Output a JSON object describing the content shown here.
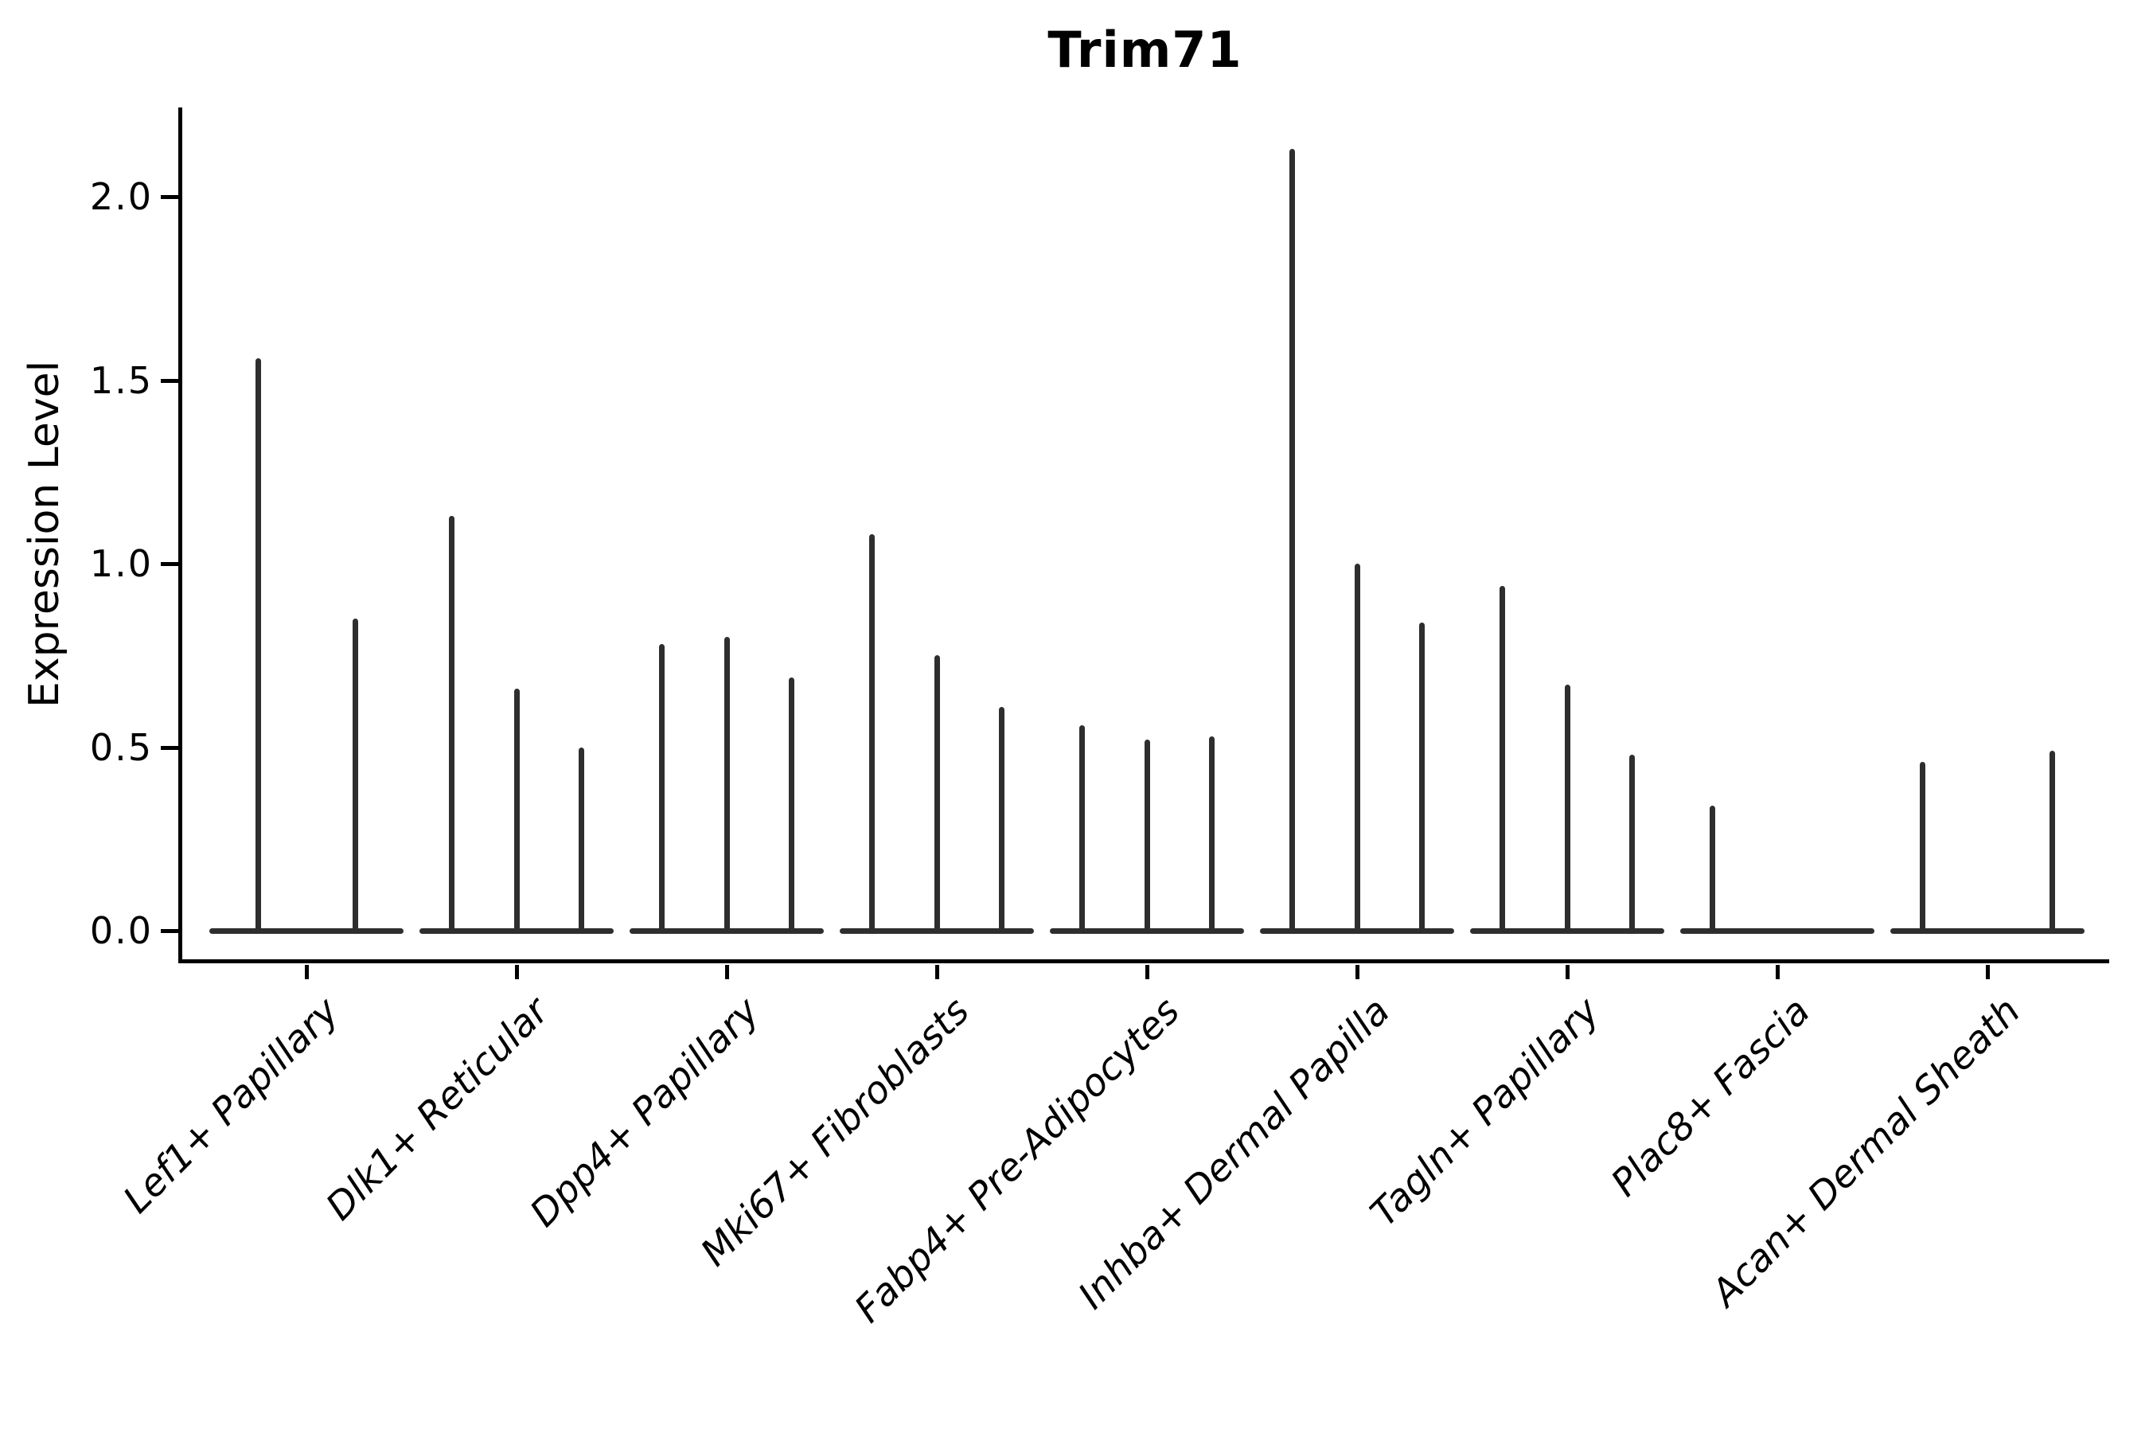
{
  "chart_data": {
    "type": "violin",
    "title": "Trim71",
    "ylabel": "Expression Level",
    "xlabel": "",
    "grid": false,
    "legend": "none",
    "ylim": [
      -0.08,
      2.24
    ],
    "yticks": [
      0.0,
      0.5,
      1.0,
      1.5,
      2.0
    ],
    "ytick_labels": [
      "0.0",
      "0.5",
      "1.0",
      "1.5",
      "2.0"
    ],
    "categories": [
      "Lef1+ Papillary",
      "Dlk1+ Reticular",
      "Dpp4+ Papillary",
      "Mki67+ Fibroblasts",
      "Fabp4+ Pre-Adipocytes",
      "Inhba+ Dermal Papilla",
      "Tagln+ Papillary",
      "Plac8+ Fascia",
      "Acan+ Dermal Sheath"
    ],
    "violins": [
      [
        1.56,
        0.85
      ],
      [
        1.13,
        0.66,
        0.5
      ],
      [
        0.78,
        0.8,
        0.69
      ],
      [
        1.08,
        0.75,
        0.61
      ],
      [
        0.56,
        0.52,
        0.53
      ],
      [
        2.13,
        1.0,
        0.84
      ],
      [
        0.94,
        0.67,
        0.48
      ],
      [
        0.34,
        0,
        0
      ],
      [
        0.46,
        0,
        0.49
      ]
    ],
    "note": "Each category holds 2-3 needle violins; value is the spike top (max expression), 0 means flat violin collapsed on the baseline.",
    "colors": {
      "violin_line": "#2e2e2e",
      "axis": "#000000",
      "background": "#ffffff",
      "text": "#000000"
    }
  }
}
